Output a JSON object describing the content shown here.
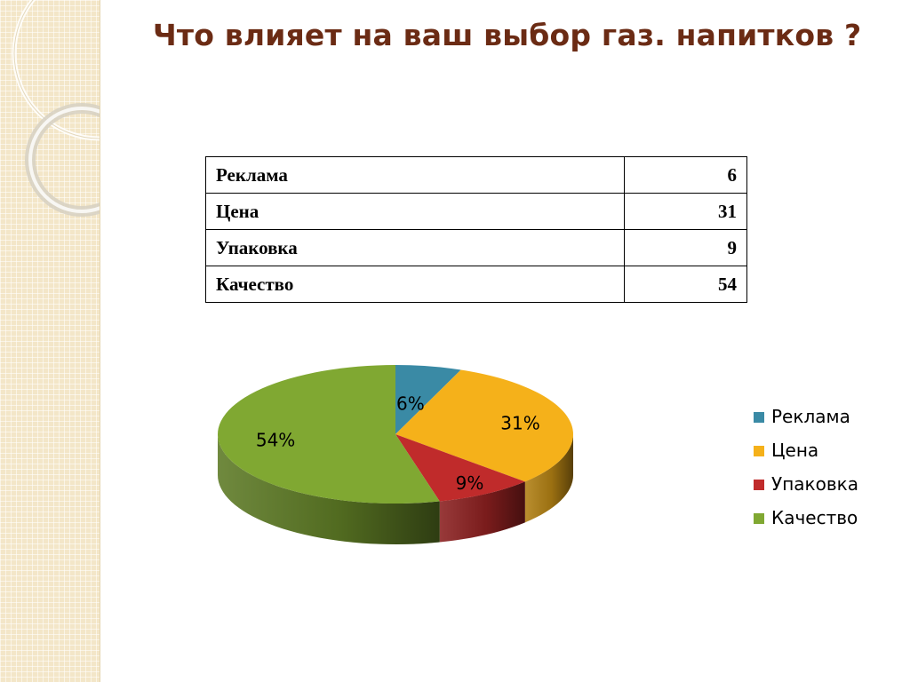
{
  "slide": {
    "title": "Что влияет на ваш выбор газ. напитков ?"
  },
  "table": {
    "rows": [
      {
        "label": "Реклама",
        "value": "6"
      },
      {
        "label": "Цена",
        "value": "31"
      },
      {
        "label": "Упаковка",
        "value": "9"
      },
      {
        "label": "Качество",
        "value": "54"
      }
    ]
  },
  "chart_data": {
    "type": "pie",
    "style": "3d",
    "categories": [
      "Реклама",
      "Цена",
      "Упаковка",
      "Качество"
    ],
    "values": [
      6,
      31,
      9,
      54
    ],
    "data_labels": [
      "6%",
      "31%",
      "9%",
      "54%"
    ],
    "colors": [
      "#3a8aa5",
      "#f5b11a",
      "#c02b2b",
      "#80a832"
    ],
    "legend": {
      "position": "right",
      "entries": [
        "Реклама",
        "Цена",
        "Упаковка",
        "Качество"
      ]
    }
  }
}
